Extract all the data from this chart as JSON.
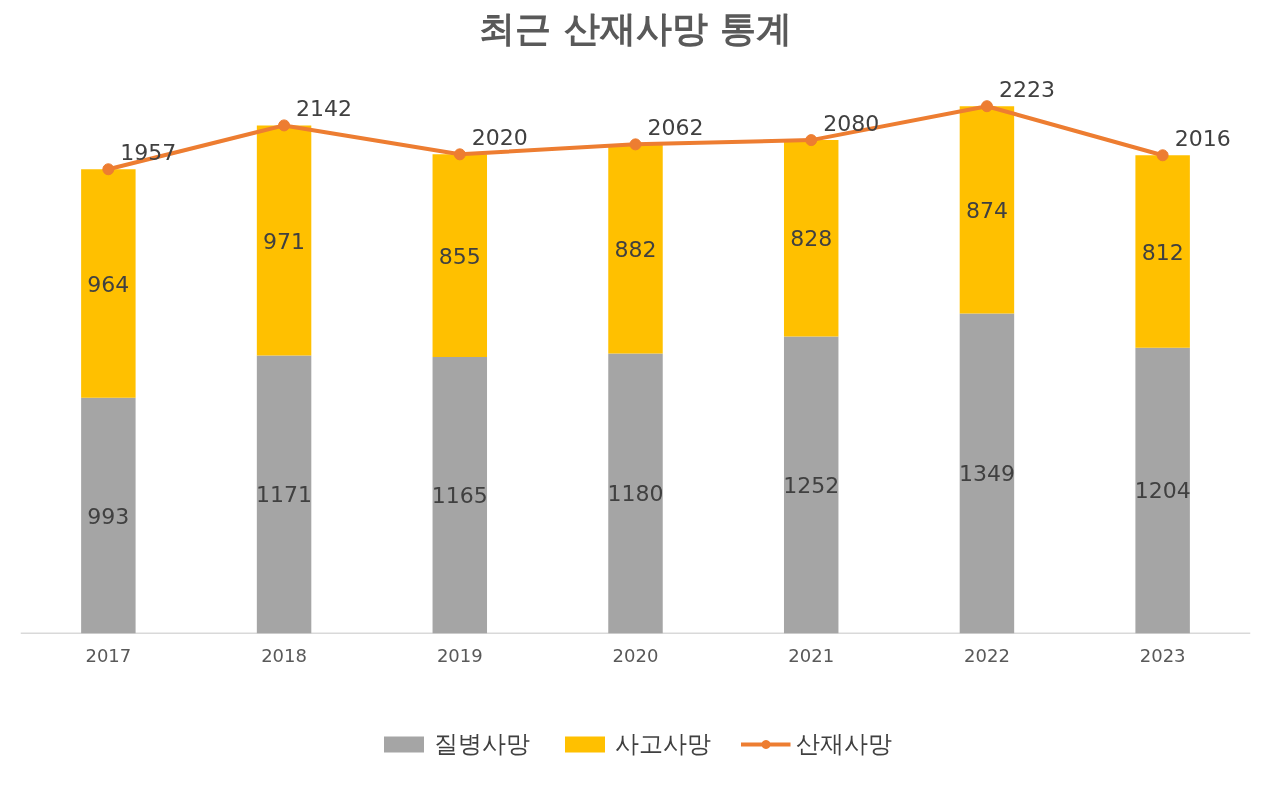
{
  "chart_data": {
    "type": "bar",
    "title": "최근 산재사망 통계",
    "categories": [
      "2017",
      "2018",
      "2019",
      "2020",
      "2021",
      "2022",
      "2023"
    ],
    "stacked": true,
    "data_labels": true,
    "legend": "bottom",
    "grid": false,
    "tick_labels": "x",
    "marker": "circle",
    "series": [
      {
        "name": "질병사망",
        "color": "#a5a5a5",
        "values": [
          993,
          1171,
          1165,
          1180,
          1252,
          1349,
          1204
        ]
      },
      {
        "name": "사고사망",
        "color": "#ffc000",
        "values": [
          964,
          971,
          855,
          882,
          828,
          874,
          812
        ]
      },
      {
        "name": "산재사망",
        "type": "line",
        "color": "#ed7d31",
        "values": [
          1957,
          2142,
          2020,
          2062,
          2080,
          2223,
          2016
        ]
      }
    ]
  }
}
